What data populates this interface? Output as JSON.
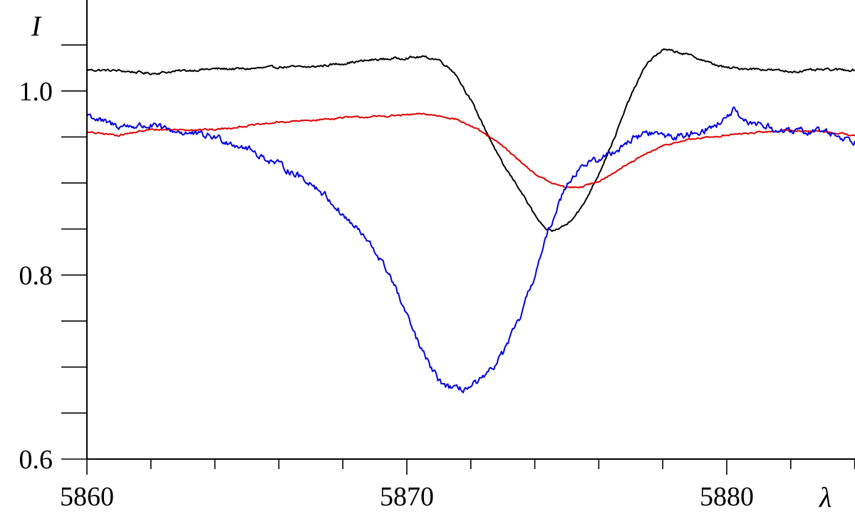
{
  "chart_data": {
    "type": "line",
    "title": "",
    "xlabel": "λ",
    "ylabel": "I",
    "xlim": [
      5860,
      5884.0
    ],
    "ylim": [
      0.6,
      1.2
    ],
    "x_major_ticks": [
      5860,
      5870,
      5880
    ],
    "x_tick_labels": [
      "5860",
      "5870",
      "5880"
    ],
    "x_minor_ticks": [
      5862,
      5864,
      5866,
      5868,
      5872,
      5874,
      5876,
      5878,
      5882,
      5884
    ],
    "y_major_ticks": [
      0.6,
      0.8,
      1.0
    ],
    "y_tick_labels": [
      "0.6",
      "0.8",
      "1.0"
    ],
    "y_minor_ticks": [
      0.65,
      0.7,
      0.75,
      0.85,
      0.9,
      0.95,
      1.05
    ],
    "grid": false,
    "legend": "none",
    "series": [
      {
        "color": "#000000",
        "noise": 0.0025,
        "x": [
          5860,
          5861,
          5862,
          5863,
          5864,
          5865,
          5866,
          5867,
          5868,
          5869,
          5870,
          5870.5,
          5871,
          5871.5,
          5872,
          5872.5,
          5873,
          5873.5,
          5874,
          5874.3,
          5874.6,
          5875,
          5875.5,
          5876,
          5876.5,
          5877,
          5877.5,
          5878,
          5878.5,
          5879,
          5879.5,
          5880,
          5881,
          5882,
          5883,
          5884
        ],
        "y": [
          1.023,
          1.022,
          1.019,
          1.022,
          1.024,
          1.024,
          1.026,
          1.026,
          1.03,
          1.034,
          1.036,
          1.037,
          1.034,
          1.02,
          0.99,
          0.955,
          0.92,
          0.895,
          0.865,
          0.85,
          0.848,
          0.855,
          0.875,
          0.91,
          0.95,
          0.995,
          1.03,
          1.045,
          1.042,
          1.037,
          1.03,
          1.025,
          1.024,
          1.021,
          1.023,
          1.023
        ]
      },
      {
        "color": "#e00000",
        "noise": 0.0018,
        "x": [
          5860,
          5861,
          5862,
          5863,
          5864,
          5865,
          5866,
          5867,
          5868,
          5869,
          5870,
          5870.5,
          5871,
          5871.5,
          5872,
          5872.5,
          5873,
          5873.5,
          5874,
          5874.5,
          5875,
          5875.5,
          5876,
          5876.5,
          5877,
          5877.5,
          5878,
          5878.5,
          5879,
          5879.5,
          5880,
          5881,
          5882,
          5883,
          5884
        ],
        "y": [
          0.955,
          0.952,
          0.958,
          0.958,
          0.958,
          0.962,
          0.966,
          0.968,
          0.971,
          0.972,
          0.974,
          0.975,
          0.973,
          0.97,
          0.962,
          0.952,
          0.94,
          0.925,
          0.91,
          0.9,
          0.895,
          0.896,
          0.902,
          0.912,
          0.922,
          0.932,
          0.94,
          0.945,
          0.948,
          0.95,
          0.952,
          0.955,
          0.957,
          0.956,
          0.952
        ]
      },
      {
        "color": "#0000e0",
        "noise": 0.007,
        "x": [
          5860,
          5860.5,
          5861,
          5861.5,
          5862,
          5862.5,
          5863,
          5863.5,
          5864,
          5864.5,
          5865,
          5865.5,
          5866,
          5866.5,
          5867,
          5867.5,
          5868,
          5868.5,
          5869,
          5869.5,
          5870,
          5870.5,
          5871,
          5871.5,
          5872,
          5872.5,
          5873,
          5873.5,
          5874,
          5874.5,
          5875,
          5875.5,
          5876,
          5876.5,
          5877,
          5877.5,
          5878,
          5878.5,
          5879,
          5879.5,
          5880,
          5880.2,
          5880.5,
          5881,
          5881.5,
          5882,
          5883,
          5884
        ],
        "y": [
          0.975,
          0.966,
          0.962,
          0.962,
          0.962,
          0.958,
          0.955,
          0.952,
          0.95,
          0.944,
          0.938,
          0.928,
          0.92,
          0.91,
          0.9,
          0.885,
          0.865,
          0.848,
          0.826,
          0.798,
          0.755,
          0.715,
          0.685,
          0.675,
          0.678,
          0.69,
          0.715,
          0.75,
          0.8,
          0.855,
          0.9,
          0.92,
          0.925,
          0.935,
          0.947,
          0.955,
          0.952,
          0.95,
          0.955,
          0.96,
          0.97,
          0.98,
          0.965,
          0.965,
          0.958,
          0.955,
          0.957,
          0.945
        ]
      }
    ]
  }
}
